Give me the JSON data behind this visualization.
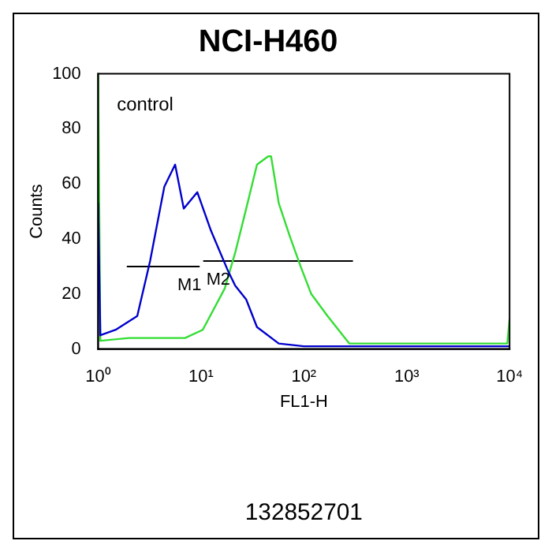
{
  "chart_data": {
    "type": "line",
    "title": "NCI-H460",
    "xlabel": "FL1-H",
    "ylabel": "Counts",
    "log": "x",
    "xlim": [
      1,
      10000
    ],
    "xticks": [
      {
        "value": 1,
        "label": "10⁰"
      },
      {
        "value": 10,
        "label": "10¹"
      },
      {
        "value": 100,
        "label": "10²"
      },
      {
        "value": 1000,
        "label": "10³"
      },
      {
        "value": 10000,
        "label": "10⁴"
      }
    ],
    "ylim": [
      0,
      100
    ],
    "yticks": [
      0,
      20,
      40,
      60,
      80,
      100
    ],
    "grid": false,
    "marker": "none",
    "line_style": "solid",
    "annotations": [
      "control",
      "132852701",
      {
        "text": "M1",
        "x": 5.5,
        "y": 30
      },
      {
        "text": "M2",
        "x": 10.5,
        "y": 32
      }
    ],
    "series": [
      {
        "color": "#0000cc",
        "x": [
          1,
          1.05,
          1.48,
          2.4,
          3.2,
          4.4,
          5.6,
          6.8,
          9.2,
          12.5,
          18,
          21.5,
          27.5,
          35,
          57,
          100,
          300,
          1000,
          3000,
          10000
        ],
        "values": [
          53,
          5,
          7,
          12,
          32,
          59,
          67,
          51,
          57,
          43,
          29,
          23,
          18,
          8,
          2,
          1,
          1,
          1,
          1,
          1
        ]
      },
      {
        "color": "#33dd33",
        "x": [
          1,
          1.05,
          2,
          4,
          7,
          10.4,
          17,
          21.5,
          27.5,
          35,
          45,
          48,
          57,
          73,
          93,
          118,
          170,
          277,
          1000,
          5000,
          9500,
          10000
        ],
        "values": [
          100,
          3,
          4,
          4,
          4,
          7,
          22,
          35,
          51,
          67,
          70,
          70,
          53,
          41,
          30,
          20,
          12,
          2,
          2,
          2,
          2,
          11
        ]
      },
      {
        "color": "#000000",
        "x": [
          1.9,
          9.7
        ],
        "values": [
          30,
          30
        ]
      },
      {
        "color": "#000000",
        "x": [
          10.5,
          300
        ],
        "values": [
          32,
          32
        ]
      }
    ]
  }
}
